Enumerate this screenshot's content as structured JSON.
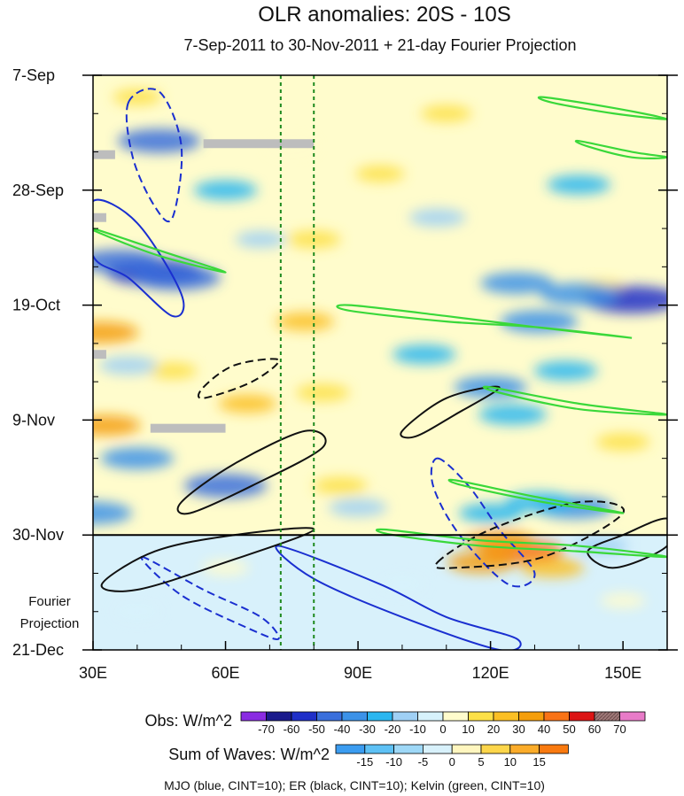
{
  "chart_data": {
    "type": "heatmap",
    "title": "OLR anomalies: 20S - 10S",
    "subtitle": "7-Sep-2011 to 30-Nov-2011 + 21-day Fourier Projection",
    "x_axis": {
      "range": [
        30,
        160
      ],
      "ticks": [
        {
          "value": 30,
          "label": "30E"
        },
        {
          "value": 60,
          "label": "60E"
        },
        {
          "value": 90,
          "label": "90E"
        },
        {
          "value": 120,
          "label": "120E"
        },
        {
          "value": 150,
          "label": "150E"
        }
      ]
    },
    "y_axis": {
      "range_days": [
        0,
        105
      ],
      "direction": "time increases downward",
      "ticks": [
        {
          "day": 0,
          "label": "7-Sep"
        },
        {
          "day": 21,
          "label": "28-Sep"
        },
        {
          "day": 42,
          "label": "19-Oct"
        },
        {
          "day": 63,
          "label": "9-Nov"
        },
        {
          "day": 84,
          "label": "30-Nov"
        },
        {
          "day": 105,
          "label": "21-Dec"
        }
      ]
    },
    "projection_label": [
      "Fourier",
      "Projection"
    ],
    "reference_lines": [
      {
        "kind": "vertical-dashed",
        "color": "#1f8a1f",
        "x": 72.5
      },
      {
        "kind": "vertical-dashed",
        "color": "#1f8a1f",
        "x": 80
      },
      {
        "kind": "horizontal-solid",
        "color": "#000000",
        "day": 84
      }
    ],
    "obs_colorbar": {
      "title": "Obs: W/m^2",
      "levels": [
        -70,
        -60,
        -50,
        -40,
        -30,
        -20,
        -10,
        0,
        10,
        20,
        30,
        40,
        50,
        60,
        70
      ],
      "colors": [
        "#8a2be2",
        "#1a1a8c",
        "#1f2fc8",
        "#3a6fdc",
        "#3c92e8",
        "#2ab6f0",
        "#9fd0f5",
        "#d7f2fb",
        "#fffccc",
        "#fde047",
        "#fbbf24",
        "#f59e0b",
        "#f97316",
        "#dc1414",
        "#b01010",
        "#e87bc8"
      ]
    },
    "waves_colorbar": {
      "title": "Sum of Waves: W/m^2",
      "levels": [
        -15,
        -10,
        -5,
        0,
        5,
        10,
        15
      ],
      "colors": [
        "#3b9cf0",
        "#5ec1f5",
        "#9ed8f7",
        "#d8f1fb",
        "#fff6bf",
        "#fdd64b",
        "#fbac2a",
        "#f97a10"
      ]
    },
    "contours": [
      {
        "wave": "MJO",
        "color": "#1a2fd0",
        "sign": "negative",
        "points": [
          [
            38,
            5
          ],
          [
            45,
            3
          ],
          [
            50,
            13
          ],
          [
            48,
            26
          ],
          [
            44,
            24
          ],
          [
            39,
            15
          ]
        ]
      },
      {
        "wave": "MJO",
        "color": "#1a2fd0",
        "sign": "positive",
        "points": [
          [
            30,
            23
          ],
          [
            40,
            27
          ],
          [
            50,
            40
          ],
          [
            48,
            44
          ],
          [
            38,
            37
          ],
          [
            30,
            33
          ]
        ]
      },
      {
        "wave": "MJO",
        "color": "#1a2fd0",
        "sign": "negative",
        "points": [
          [
            41,
            88
          ],
          [
            55,
            94
          ],
          [
            68,
            99
          ],
          [
            72,
            103
          ],
          [
            65,
            101
          ],
          [
            50,
            95
          ]
        ]
      },
      {
        "wave": "MJO",
        "color": "#1a2fd0",
        "sign": "positive",
        "points": [
          [
            72,
            86
          ],
          [
            95,
            93
          ],
          [
            110,
            99
          ],
          [
            126,
            103
          ],
          [
            122,
            105
          ],
          [
            100,
            99
          ],
          [
            80,
            92
          ]
        ]
      },
      {
        "wave": "MJO",
        "color": "#1a2fd0",
        "sign": "negative",
        "points": [
          [
            108,
            70
          ],
          [
            115,
            75
          ],
          [
            122,
            83
          ],
          [
            130,
            91
          ],
          [
            124,
            93
          ],
          [
            113,
            84
          ],
          [
            107,
            75
          ]
        ]
      },
      {
        "wave": "ER",
        "color": "#111111",
        "sign": "negative",
        "points": [
          [
            55,
            57
          ],
          [
            62,
            53
          ],
          [
            72,
            52
          ],
          [
            66,
            56
          ],
          [
            55,
            59
          ]
        ]
      },
      {
        "wave": "ER",
        "color": "#111111",
        "sign": "positive",
        "points": [
          [
            100,
            65
          ],
          [
            110,
            59
          ],
          [
            122,
            57
          ],
          [
            112,
            62
          ],
          [
            103,
            66
          ]
        ]
      },
      {
        "wave": "ER",
        "color": "#111111",
        "sign": "positive",
        "points": [
          [
            50,
            78
          ],
          [
            62,
            71
          ],
          [
            78,
            65
          ],
          [
            82,
            68
          ],
          [
            66,
            75
          ],
          [
            52,
            80
          ]
        ]
      },
      {
        "wave": "ER",
        "color": "#111111",
        "sign": "positive",
        "points": [
          [
            32,
            93
          ],
          [
            44,
            87
          ],
          [
            62,
            84
          ],
          [
            80,
            83
          ],
          [
            60,
            89
          ],
          [
            40,
            94
          ]
        ]
      },
      {
        "wave": "ER",
        "color": "#111111",
        "sign": "negative",
        "points": [
          [
            108,
            89
          ],
          [
            120,
            83
          ],
          [
            140,
            78
          ],
          [
            150,
            80
          ],
          [
            132,
            88
          ],
          [
            112,
            90
          ]
        ]
      },
      {
        "wave": "ER",
        "color": "#111111",
        "sign": "positive",
        "points": [
          [
            142,
            87
          ],
          [
            150,
            84
          ],
          [
            160,
            81
          ],
          [
            160,
            86
          ],
          [
            148,
            90
          ]
        ]
      },
      {
        "wave": "Kelvin",
        "color": "#3ad83a",
        "sign": "positive",
        "points": [
          [
            88,
            42
          ],
          [
            110,
            44
          ],
          [
            130,
            46
          ],
          [
            152,
            48
          ],
          [
            130,
            46
          ],
          [
            110,
            45
          ],
          [
            88,
            43
          ]
        ]
      },
      {
        "wave": "Kelvin",
        "color": "#3ad83a",
        "sign": "positive",
        "points": [
          [
            120,
            57
          ],
          [
            140,
            60
          ],
          [
            160,
            62
          ],
          [
            140,
            61
          ],
          [
            122,
            58
          ]
        ]
      },
      {
        "wave": "Kelvin",
        "color": "#3ad83a",
        "sign": "positive",
        "points": [
          [
            112,
            74
          ],
          [
            130,
            77
          ],
          [
            150,
            80
          ],
          [
            132,
            78
          ],
          [
            114,
            75
          ]
        ]
      },
      {
        "wave": "Kelvin",
        "color": "#3ad83a",
        "sign": "positive",
        "points": [
          [
            96,
            83
          ],
          [
            118,
            85
          ],
          [
            140,
            86
          ],
          [
            160,
            88
          ],
          [
            140,
            87
          ],
          [
            118,
            86
          ],
          [
            98,
            84
          ]
        ]
      },
      {
        "wave": "Kelvin",
        "color": "#3ad83a",
        "sign": "positive",
        "points": [
          [
            30,
            28
          ],
          [
            45,
            32
          ],
          [
            60,
            36
          ],
          [
            45,
            33
          ],
          [
            32,
            29
          ]
        ]
      },
      {
        "wave": "Kelvin",
        "color": "#3ad83a",
        "sign": "positive",
        "points": [
          [
            132,
            4
          ],
          [
            148,
            6
          ],
          [
            160,
            8
          ],
          [
            148,
            7
          ],
          [
            134,
            5
          ]
        ]
      },
      {
        "wave": "Kelvin",
        "color": "#3ad83a",
        "sign": "positive",
        "points": [
          [
            140,
            12
          ],
          [
            152,
            14
          ],
          [
            160,
            15
          ],
          [
            152,
            15
          ],
          [
            142,
            13
          ]
        ]
      }
    ],
    "missing_data_bars": [
      {
        "x": [
          55,
          80
        ],
        "day": 12.5
      },
      {
        "x": [
          43,
          60
        ],
        "day": 64.5
      },
      {
        "x": [
          30,
          35
        ],
        "day": 14.5
      },
      {
        "x": [
          30,
          33
        ],
        "day": 26
      },
      {
        "x": [
          30,
          33
        ],
        "day": 51
      }
    ],
    "blob_features": [
      {
        "x": 127,
        "day": 87,
        "value": 45
      },
      {
        "x": 122,
        "day": 85,
        "value": 30
      },
      {
        "x": 118,
        "day": 89,
        "value": 30
      },
      {
        "x": 134,
        "day": 90,
        "value": 25
      },
      {
        "x": 80,
        "day": 30,
        "value": 15
      },
      {
        "x": 78,
        "day": 45,
        "value": 20
      },
      {
        "x": 82,
        "day": 58,
        "value": 15
      },
      {
        "x": 86,
        "day": 75,
        "value": 15
      },
      {
        "x": 110,
        "day": 7,
        "value": 12
      },
      {
        "x": 95,
        "day": 18,
        "value": 10
      },
      {
        "x": 65,
        "day": 60,
        "value": 20
      },
      {
        "x": 48,
        "day": 54,
        "value": 10
      },
      {
        "x": 150,
        "day": 67,
        "value": 15
      },
      {
        "x": 32,
        "day": 47,
        "value": 35
      },
      {
        "x": 33,
        "day": 64,
        "value": 30
      },
      {
        "x": 145,
        "day": 39,
        "value": 10
      },
      {
        "x": 75,
        "day": 13,
        "value": 8
      },
      {
        "x": 40,
        "day": 4,
        "value": 10
      },
      {
        "x": 44,
        "day": 36,
        "value": -60
      },
      {
        "x": 36,
        "day": 34,
        "value": -45
      },
      {
        "x": 49,
        "day": 37,
        "value": -50
      },
      {
        "x": 152,
        "day": 41,
        "value": -60
      },
      {
        "x": 140,
        "day": 40,
        "value": -40
      },
      {
        "x": 126,
        "day": 38,
        "value": -35
      },
      {
        "x": 131,
        "day": 45,
        "value": -40
      },
      {
        "x": 139,
        "day": 79,
        "value": -40
      },
      {
        "x": 131,
        "day": 78,
        "value": -30
      },
      {
        "x": 120,
        "day": 80,
        "value": -25
      },
      {
        "x": 90,
        "day": 79,
        "value": -20
      },
      {
        "x": 60,
        "day": 75,
        "value": -45
      },
      {
        "x": 40,
        "day": 70,
        "value": -35
      },
      {
        "x": 120,
        "day": 57,
        "value": -35
      },
      {
        "x": 125,
        "day": 62,
        "value": -30
      },
      {
        "x": 137,
        "day": 54,
        "value": -25
      },
      {
        "x": 45,
        "day": 12,
        "value": -45
      },
      {
        "x": 60,
        "day": 21,
        "value": -25
      },
      {
        "x": 30,
        "day": 80,
        "value": -40
      },
      {
        "x": 108,
        "day": 26,
        "value": -18
      },
      {
        "x": 140,
        "day": 20,
        "value": -25
      },
      {
        "x": 105,
        "day": 51,
        "value": -25
      },
      {
        "x": 68,
        "day": 30,
        "value": -12
      },
      {
        "x": 38,
        "day": 53,
        "value": -20
      },
      {
        "x": 145,
        "day": 86,
        "value": -15
      },
      {
        "x": 60,
        "day": 90,
        "value": 8
      },
      {
        "x": 100,
        "day": 93,
        "value": -5
      },
      {
        "x": 40,
        "day": 98,
        "value": -6
      },
      {
        "x": 150,
        "day": 96,
        "value": 6
      }
    ],
    "footer": "MJO (blue, CINT=10); ER (black, CINT=10); Kelvin (green, CINT=10)"
  }
}
